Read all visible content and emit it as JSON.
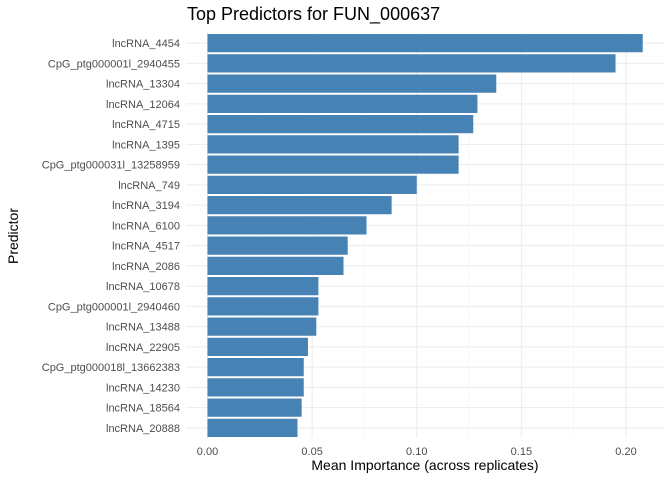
{
  "chart_data": {
    "type": "bar",
    "orientation": "horizontal",
    "title": "Top Predictors for FUN_000637",
    "xlabel": "Mean Importance (across replicates)",
    "ylabel": "Predictor",
    "xlim": [
      0,
      0.21
    ],
    "xticks": [
      0.0,
      0.05,
      0.1,
      0.15,
      0.2
    ],
    "xtick_labels": [
      "0.00",
      "0.05",
      "0.10",
      "0.15",
      "0.20"
    ],
    "grid": true,
    "bar_color": "#4682b4",
    "categories": [
      "lncRNA_4454",
      "CpG_ptg000001l_2940455",
      "lncRNA_13304",
      "lncRNA_12064",
      "lncRNA_4715",
      "lncRNA_1395",
      "CpG_ptg000031l_13258959",
      "lncRNA_749",
      "lncRNA_3194",
      "lncRNA_6100",
      "lncRNA_4517",
      "lncRNA_2086",
      "lncRNA_10678",
      "CpG_ptg000001l_2940460",
      "lncRNA_13488",
      "lncRNA_22905",
      "CpG_ptg000018l_13662383",
      "lncRNA_14230",
      "lncRNA_18564",
      "lncRNA_20888"
    ],
    "values": [
      0.208,
      0.195,
      0.138,
      0.129,
      0.127,
      0.12,
      0.12,
      0.1,
      0.088,
      0.076,
      0.067,
      0.065,
      0.053,
      0.053,
      0.052,
      0.048,
      0.046,
      0.046,
      0.045,
      0.043
    ]
  }
}
